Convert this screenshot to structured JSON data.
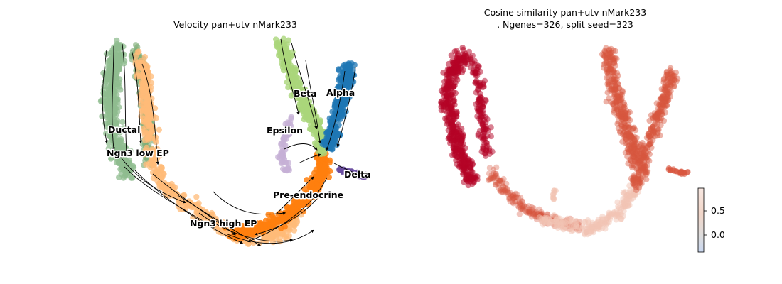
{
  "chart_data": [
    {
      "type": "scatter",
      "title": "Velocity pan+utv nMark233",
      "xlabel": "",
      "ylabel": "",
      "legend": "on-data",
      "grid": false,
      "clusters": [
        {
          "name": "Ductal",
          "color": "#8fbc8f"
        },
        {
          "name": "Ngn3 low EP",
          "color": "#7fae78"
        },
        {
          "name": "Ngn3 high EP",
          "color": "#ffbb78"
        },
        {
          "name": "Pre-endocrine",
          "color": "#ff7f0e"
        },
        {
          "name": "Beta",
          "color": "#aad67a"
        },
        {
          "name": "Alpha",
          "color": "#1f77b4"
        },
        {
          "name": "Delta",
          "color": "#6a4ea0"
        },
        {
          "name": "Epsilon",
          "color": "#c5b0d5"
        }
      ],
      "stream_color": "#000000"
    },
    {
      "type": "scatter",
      "title_line1": "Cosine similarity pan+utv nMark233",
      "title_line2": ", Ngenes=326, split seed=323",
      "xlabel": "",
      "ylabel": "",
      "colorbar": {
        "ticks": [
          "0.5",
          "0.0"
        ],
        "tick_values": [
          0.5,
          0.0
        ],
        "range": [
          -0.3,
          0.93
        ],
        "cmap": "coolwarm"
      },
      "point_colors": {
        "high": "#b40426",
        "mid": "#d8573f",
        "low": "#f2c3b3"
      }
    }
  ]
}
